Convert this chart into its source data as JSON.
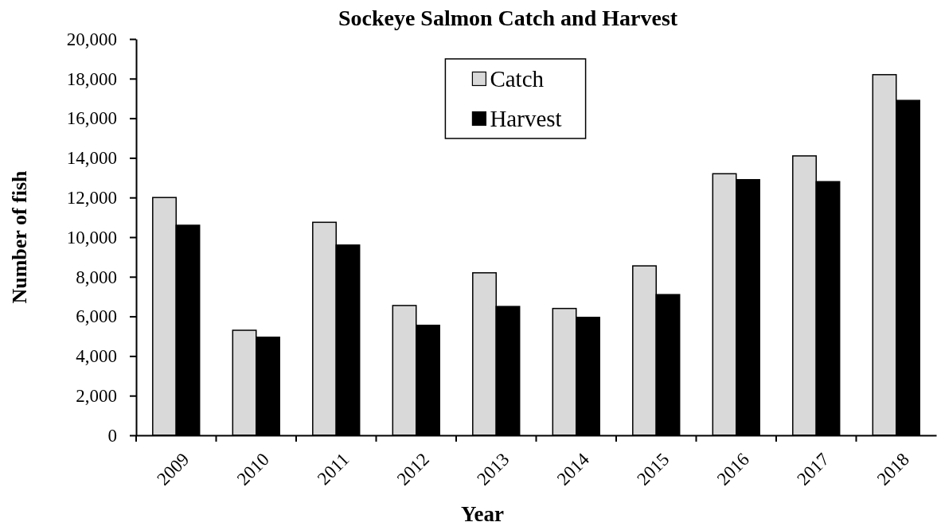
{
  "chart_data": {
    "type": "bar",
    "title": "Sockeye Salmon Catch and Harvest",
    "xlabel": "Year",
    "ylabel": "Number of fish",
    "categories": [
      "2009",
      "2010",
      "2011",
      "2012",
      "2013",
      "2014",
      "2015",
      "2016",
      "2017",
      "2018"
    ],
    "series": [
      {
        "name": "Catch",
        "color": "#d9d9d9",
        "values": [
          12000,
          5300,
          10750,
          6550,
          8200,
          6400,
          8550,
          13200,
          14100,
          18200
        ]
      },
      {
        "name": "Harvest",
        "color": "#000000",
        "values": [
          10600,
          4950,
          9600,
          5550,
          6500,
          5950,
          7100,
          12900,
          12800,
          16900
        ]
      }
    ],
    "ylim": [
      0,
      20000
    ],
    "yticks": [
      0,
      {
        "value": 2000,
        "label": "2,000"
      },
      {
        "value": 4000,
        "label": "4,000"
      },
      {
        "value": 6000,
        "label": "6,000"
      },
      {
        "value": 8000,
        "label": "8,000"
      },
      {
        "value": 10000,
        "label": "10,000"
      },
      {
        "value": 12000,
        "label": "12,000"
      },
      {
        "value": 14000,
        "label": "14,000"
      },
      {
        "value": 16000,
        "label": "16,000"
      },
      {
        "value": 18000,
        "label": "18,000"
      },
      {
        "value": 20000,
        "label": "20,000"
      }
    ],
    "legend": "top"
  }
}
